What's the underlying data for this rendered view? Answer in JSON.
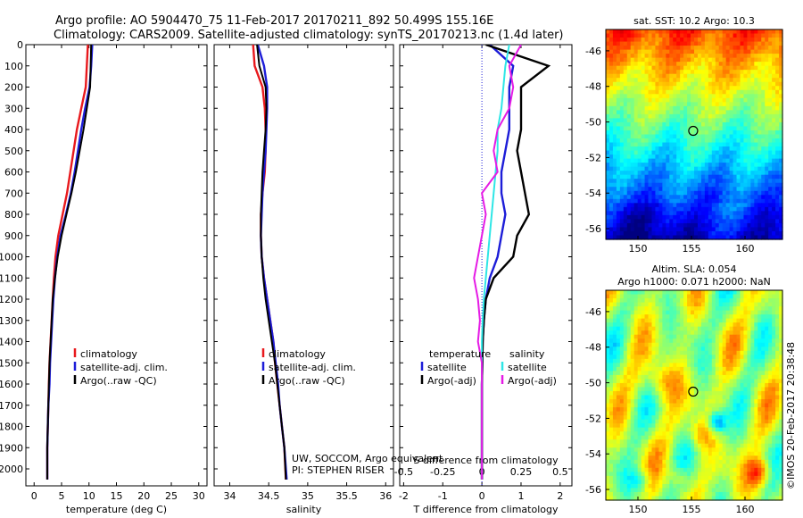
{
  "header": {
    "title_line1": "Argo profile: AO 5904470_75 11-Feb-2017 20170211_892 50.499S 155.16E",
    "title_line2": "Climatology: CARS2009. Satellite-adjusted climatology: synTS_20170213.nc (1.4d later)"
  },
  "credits": {
    "line1": "UW, SOCCOM, Argo equivalent",
    "line2": "PI: STEPHEN RISER",
    "watermark": "©IMOS 20-Feb-2017 20:38:48"
  },
  "colors": {
    "climatology": "#e8191d",
    "satellite": "#1d1dd8",
    "argo": "#000000",
    "sat_t": "#1d1dd8",
    "sat_s": "#2ee6e6",
    "argo_s": "#e51be5"
  },
  "chart_data": [
    {
      "type": "line",
      "name": "temperature-profile",
      "xlabel": "temperature (deg C)",
      "ylabel": "",
      "xlim": [
        -1.5,
        31.5
      ],
      "ylim": [
        2080,
        0
      ],
      "xticks": [
        0,
        5,
        10,
        15,
        20,
        25,
        30
      ],
      "yticks": [
        0,
        100,
        200,
        300,
        400,
        500,
        600,
        700,
        800,
        900,
        1000,
        1100,
        1200,
        1300,
        1400,
        1500,
        1600,
        1700,
        1800,
        1900,
        2000
      ],
      "legend": [
        "climatology",
        "satellite-adj. clim.",
        "Argo(..raw -QC)"
      ],
      "legend_position": "lower-center",
      "series": [
        {
          "name": "climatology",
          "color_key": "climatology",
          "x": [
            9.8,
            9.6,
            9.4,
            8.6,
            7.8,
            7.2,
            6.6,
            6.0,
            5.2,
            4.4,
            3.9,
            3.6,
            3.4,
            3.2,
            3.0,
            2.8,
            2.7,
            2.6,
            2.5,
            2.4,
            2.4
          ],
          "y": [
            0,
            100,
            200,
            300,
            400,
            500,
            600,
            700,
            800,
            900,
            1000,
            1100,
            1200,
            1300,
            1400,
            1500,
            1600,
            1700,
            1800,
            1900,
            2050
          ]
        },
        {
          "name": "satellite-adj. clim.",
          "color_key": "satellite",
          "x": [
            10.6,
            10.4,
            10.1,
            9.3,
            8.6,
            8.0,
            7.4,
            6.7,
            5.8,
            4.8,
            4.2,
            3.8,
            3.5,
            3.3,
            3.1,
            2.9,
            2.8,
            2.6,
            2.5,
            2.4,
            2.4
          ],
          "y": [
            0,
            100,
            200,
            300,
            400,
            500,
            600,
            700,
            800,
            900,
            1000,
            1100,
            1200,
            1300,
            1400,
            1500,
            1600,
            1700,
            1800,
            1900,
            2050
          ]
        },
        {
          "name": "Argo(..raw -QC)",
          "color_key": "argo",
          "x": [
            10.4,
            10.3,
            10.2,
            9.6,
            9.0,
            8.3,
            7.6,
            6.8,
            5.9,
            5.0,
            4.3,
            3.8,
            3.4,
            3.2,
            3.0,
            2.8,
            2.7,
            2.6,
            2.5,
            2.4,
            2.4
          ],
          "y": [
            0,
            100,
            200,
            300,
            400,
            500,
            600,
            700,
            800,
            900,
            1000,
            1100,
            1200,
            1300,
            1400,
            1500,
            1600,
            1700,
            1800,
            1900,
            2050
          ]
        }
      ]
    },
    {
      "type": "line",
      "name": "salinity-profile",
      "xlabel": "salinity",
      "ylabel": "",
      "xlim": [
        33.8,
        36.1
      ],
      "ylim": [
        2080,
        0
      ],
      "xticks": [
        34,
        34.5,
        35,
        35.5,
        36
      ],
      "xtick_labels": [
        "34",
        "34.5",
        "35",
        "35.5",
        "36"
      ],
      "legend": [
        "climatology",
        "satellite-adj. clim.",
        "Argo(..raw -QC)"
      ],
      "legend_position": "lower-center",
      "series": [
        {
          "name": "climatology",
          "color_key": "climatology",
          "x": [
            34.3,
            34.32,
            34.42,
            34.45,
            34.46,
            34.46,
            34.45,
            34.42,
            34.4,
            34.4,
            34.41,
            34.44,
            34.48,
            34.52,
            34.56,
            34.58,
            34.61,
            34.64,
            34.67,
            34.7,
            34.72
          ],
          "y": [
            0,
            100,
            200,
            300,
            400,
            500,
            600,
            700,
            800,
            900,
            1000,
            1100,
            1200,
            1300,
            1400,
            1500,
            1600,
            1700,
            1800,
            1900,
            2050
          ]
        },
        {
          "name": "satellite-adj. clim.",
          "color_key": "satellite",
          "x": [
            34.36,
            34.44,
            34.48,
            34.48,
            34.47,
            34.46,
            34.44,
            34.42,
            34.41,
            34.4,
            34.41,
            34.44,
            34.48,
            34.52,
            34.56,
            34.59,
            34.62,
            34.64,
            34.67,
            34.7,
            34.73
          ],
          "y": [
            0,
            100,
            200,
            300,
            400,
            500,
            600,
            700,
            800,
            900,
            1000,
            1100,
            1200,
            1300,
            1400,
            1500,
            1600,
            1700,
            1800,
            1900,
            2050
          ]
        },
        {
          "name": "Argo(..raw -QC)",
          "color_key": "argo",
          "x": [
            34.35,
            34.38,
            34.46,
            34.47,
            34.46,
            34.44,
            34.42,
            34.41,
            34.4,
            34.4,
            34.41,
            34.43,
            34.46,
            34.5,
            34.54,
            34.58,
            34.61,
            34.64,
            34.67,
            34.7,
            34.72
          ],
          "y": [
            0,
            100,
            200,
            300,
            400,
            500,
            600,
            700,
            800,
            900,
            1000,
            1100,
            1200,
            1300,
            1400,
            1500,
            1600,
            1700,
            1800,
            1900,
            2050
          ]
        }
      ]
    },
    {
      "type": "line",
      "name": "difference-profile",
      "xlabel": "T difference from climatology",
      "xlabel_top": "S difference from climatology",
      "xlim": [
        -2.1,
        2.3
      ],
      "ylim": [
        2080,
        0
      ],
      "xticks": [
        -2,
        -1,
        0,
        1,
        2
      ],
      "xtick_labels": [
        "-2",
        "-1",
        "0",
        "1",
        "2"
      ],
      "top_xticks": [
        -0.5,
        -0.25,
        0,
        0.25,
        0.5
      ],
      "top_xtick_labels": [
        "-0.5",
        "-0.25",
        "0",
        "0.25",
        "0.5"
      ],
      "legend_left_title": "temperature",
      "legend_right_title": "salinity",
      "legend": [
        "satellite",
        "Argo(-adj)",
        "satellite",
        "Argo(-adj)"
      ],
      "legend_position": "lower-center",
      "series": [
        {
          "name": "satellite",
          "quantity": "temperature",
          "color_key": "sat_t",
          "x": [
            0.2,
            0.8,
            0.7,
            0.7,
            0.7,
            0.6,
            0.5,
            0.5,
            0.6,
            0.5,
            0.4,
            0.2,
            0.1,
            0.05,
            0.02,
            0.01,
            0,
            0,
            0,
            0,
            0
          ],
          "y": [
            0,
            100,
            200,
            300,
            400,
            500,
            600,
            700,
            800,
            900,
            1000,
            1100,
            1200,
            1300,
            1400,
            1500,
            1600,
            1700,
            1800,
            1900,
            2050
          ]
        },
        {
          "name": "Argo(-adj)",
          "quantity": "temperature",
          "color_key": "argo",
          "x": [
            0.1,
            1.7,
            1.0,
            1.0,
            1.0,
            0.9,
            1.0,
            1.1,
            1.2,
            0.9,
            0.8,
            0.3,
            0.1,
            0.05,
            0.02,
            0.01,
            0,
            0,
            0,
            0,
            0
          ],
          "y": [
            0,
            100,
            200,
            300,
            400,
            500,
            600,
            700,
            800,
            900,
            1000,
            1100,
            1200,
            1300,
            1400,
            1500,
            1600,
            1700,
            1800,
            1900,
            2050
          ]
        },
        {
          "name": "satellite",
          "quantity": "salinity",
          "color_key": "sat_s",
          "x": [
            0.7,
            0.6,
            0.55,
            0.5,
            0.4,
            0.4,
            0.35,
            0.3,
            0.25,
            0.2,
            0.15,
            0.1,
            0.05,
            0.02,
            0,
            0,
            0,
            0,
            0,
            0,
            0
          ],
          "y": [
            0,
            100,
            200,
            300,
            400,
            500,
            600,
            700,
            800,
            900,
            1000,
            1100,
            1200,
            1300,
            1400,
            1500,
            1600,
            1700,
            1800,
            1900,
            2050
          ]
        },
        {
          "name": "Argo(-adj)",
          "quantity": "salinity",
          "color_key": "argo_s",
          "x": [
            1.0,
            0.7,
            0.8,
            0.7,
            0.4,
            0.3,
            0.4,
            0.0,
            0.1,
            0.0,
            -0.1,
            -0.2,
            -0.1,
            -0.05,
            -0.1,
            0,
            0,
            0,
            0,
            0,
            0
          ],
          "y": [
            0,
            100,
            200,
            300,
            400,
            500,
            600,
            700,
            800,
            900,
            1000,
            1100,
            1200,
            1300,
            1400,
            1500,
            1600,
            1700,
            1800,
            1900,
            2050
          ]
        }
      ]
    },
    {
      "type": "heatmap",
      "name": "sst-map",
      "title": "sat. SST: 10.2  Argo: 10.3",
      "xlim": [
        147,
        163.5
      ],
      "ylim": [
        -56.6,
        -44.8
      ],
      "xticks": [
        150,
        155,
        160
      ],
      "yticks": [
        -46,
        -48,
        -50,
        -52,
        -54,
        -56
      ],
      "marker": {
        "lon": 155.16,
        "lat": -50.499
      },
      "description_colorscale": "jet; warm north, cold south",
      "field_type": "zonal-bands"
    },
    {
      "type": "heatmap",
      "name": "sla-map",
      "title_line1": "Altim. SLA: 0.054",
      "title_line2": "Argo h1000: 0.071 h2000: NaN",
      "xlim": [
        147,
        163.5
      ],
      "ylim": [
        -56.6,
        -44.8
      ],
      "xticks": [
        150,
        155,
        160
      ],
      "yticks": [
        -46,
        -48,
        -50,
        -52,
        -54,
        -56
      ],
      "marker": {
        "lon": 155.16,
        "lat": -50.499
      },
      "field_type": "eddies"
    }
  ]
}
